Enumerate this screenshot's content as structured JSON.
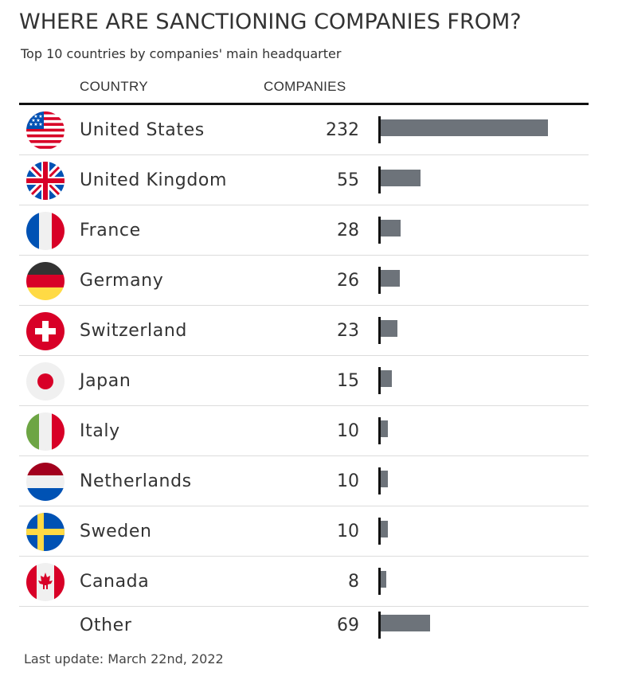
{
  "title": "WHERE ARE SANCTIONING COMPANIES FROM?",
  "subtitle": "Top 10 countries by companies' main headquarter",
  "columns": {
    "country": "COUNTRY",
    "companies": "COMPANIES"
  },
  "footnote": "Last update: March 22nd, 2022",
  "colors": {
    "bar": "#6d737a",
    "axis": "#111111",
    "text": "#333333",
    "separator": "#dcdcdc"
  },
  "chart_data": {
    "type": "bar",
    "orientation": "horizontal",
    "categories": [
      "United States",
      "United Kingdom",
      "France",
      "Germany",
      "Switzerland",
      "Japan",
      "Italy",
      "Netherlands",
      "Sweden",
      "Canada",
      "Other"
    ],
    "values": [
      232,
      55,
      28,
      26,
      23,
      15,
      10,
      10,
      10,
      8,
      69
    ],
    "flags": [
      "us-flag-icon",
      "uk-flag-icon",
      "france-flag-icon",
      "germany-flag-icon",
      "switzerland-flag-icon",
      "japan-flag-icon",
      "italy-flag-icon",
      "netherlands-flag-icon",
      "sweden-flag-icon",
      "canada-flag-icon",
      null
    ],
    "xlim": [
      0,
      232
    ],
    "grid": false,
    "legend": "none"
  }
}
